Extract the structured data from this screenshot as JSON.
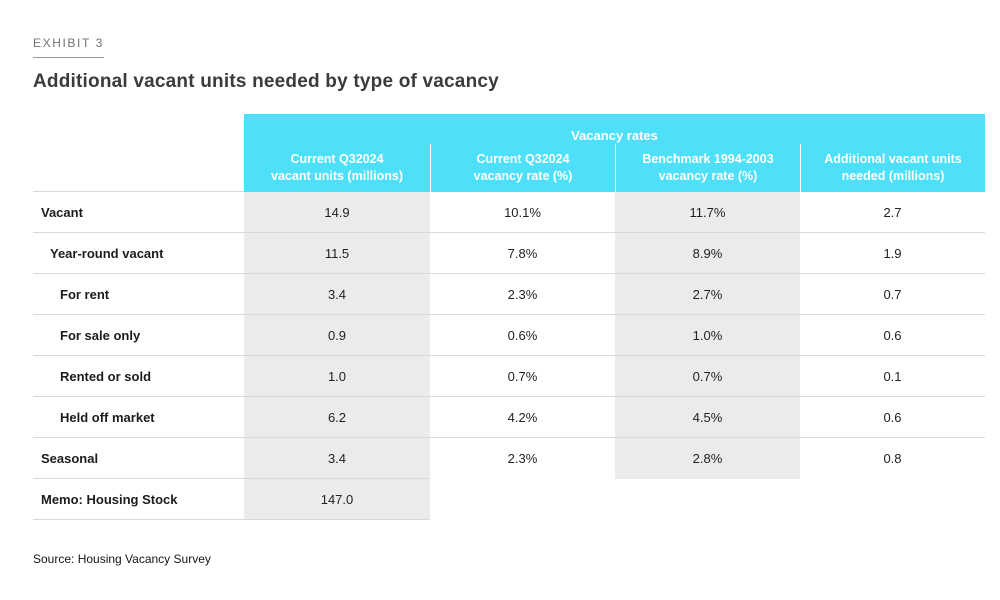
{
  "exhibit_label": "EXHIBIT 3",
  "title": "Additional vacant units needed by type of vacancy",
  "source": "Source: Housing Vacancy Survey",
  "colors": {
    "header_cyan": "#4fe0f9",
    "column_shade": "#ebebeb",
    "separator": "#d9d9d9",
    "header_text": "#ffffff",
    "title_text": "#3b3b3b"
  },
  "chart_data": {
    "type": "table",
    "title": "Additional vacant units needed by type of vacancy",
    "group_header": "Vacancy rates",
    "columns": [
      {
        "line1": "Current Q32024",
        "line2": "vacant units (millions)"
      },
      {
        "line1": "Current Q32024",
        "line2": "vacancy rate (%)"
      },
      {
        "line1": "Benchmark 1994-2003",
        "line2": "vacancy rate (%)"
      },
      {
        "line1": "Additional vacant units",
        "line2": "needed (millions)"
      }
    ],
    "rows": [
      {
        "label": "Vacant",
        "indent": 0,
        "values": [
          "14.9",
          "10.1%",
          "11.7%",
          "2.7"
        ]
      },
      {
        "label": "Year-round vacant",
        "indent": 1,
        "values": [
          "11.5",
          "7.8%",
          "8.9%",
          "1.9"
        ]
      },
      {
        "label": "For rent",
        "indent": 2,
        "values": [
          "3.4",
          "2.3%",
          "2.7%",
          "0.7"
        ]
      },
      {
        "label": "For sale only",
        "indent": 2,
        "values": [
          "0.9",
          "0.6%",
          "1.0%",
          "0.6"
        ]
      },
      {
        "label": "Rented or sold",
        "indent": 2,
        "values": [
          "1.0",
          "0.7%",
          "0.7%",
          "0.1"
        ]
      },
      {
        "label": "Held off market",
        "indent": 2,
        "values": [
          "6.2",
          "4.2%",
          "4.5%",
          "0.6"
        ]
      },
      {
        "label": "Seasonal",
        "indent": 0,
        "values": [
          "3.4",
          "2.3%",
          "2.8%",
          "0.8"
        ]
      },
      {
        "label": "Memo: Housing Stock",
        "indent": 0,
        "values": [
          "147.0",
          "",
          "",
          ""
        ]
      }
    ]
  }
}
